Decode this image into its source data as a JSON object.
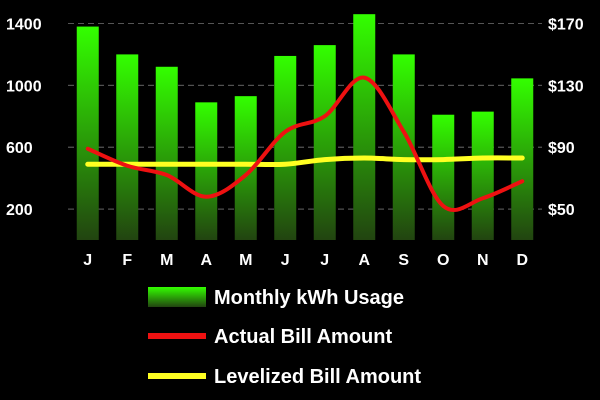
{
  "chart_data": {
    "type": "bar",
    "categories": [
      "J",
      "F",
      "M",
      "A",
      "M",
      "J",
      "J",
      "A",
      "S",
      "O",
      "N",
      "D"
    ],
    "series": [
      {
        "name": "Monthly kWh Usage",
        "kind": "bar",
        "axis": "left",
        "values": [
          1380,
          1200,
          1120,
          890,
          930,
          1190,
          1260,
          1460,
          1200,
          810,
          830,
          1045
        ]
      },
      {
        "name": "Actual Bill Amount",
        "kind": "line",
        "axis": "right",
        "values": [
          89,
          78,
          72,
          58,
          72,
          100,
          110,
          135,
          100,
          52,
          57,
          68
        ]
      },
      {
        "name": "Levelized Bill Amount",
        "kind": "line",
        "axis": "right",
        "values": [
          79,
          79,
          79,
          79,
          79,
          79,
          82,
          83,
          82,
          82,
          83,
          83
        ]
      }
    ],
    "y_left": {
      "ticks": [
        200,
        600,
        1000,
        1400
      ],
      "tick_labels": [
        "200",
        "600",
        "1000",
        "1400"
      ],
      "range": [
        0,
        1500
      ]
    },
    "y_right": {
      "ticks": [
        50,
        90,
        130,
        170
      ],
      "tick_labels": [
        "$50",
        "$90",
        "$130",
        "$170"
      ],
      "range": [
        30,
        180
      ]
    },
    "grid": true,
    "legend_position": "bottom",
    "colors": {
      "background": "#000000",
      "grid": "#555555",
      "bar_top": "#33ff00",
      "bar_bottom": "#224410",
      "actual_line": "#ee1111",
      "levelized_line": "#ffff22"
    }
  }
}
